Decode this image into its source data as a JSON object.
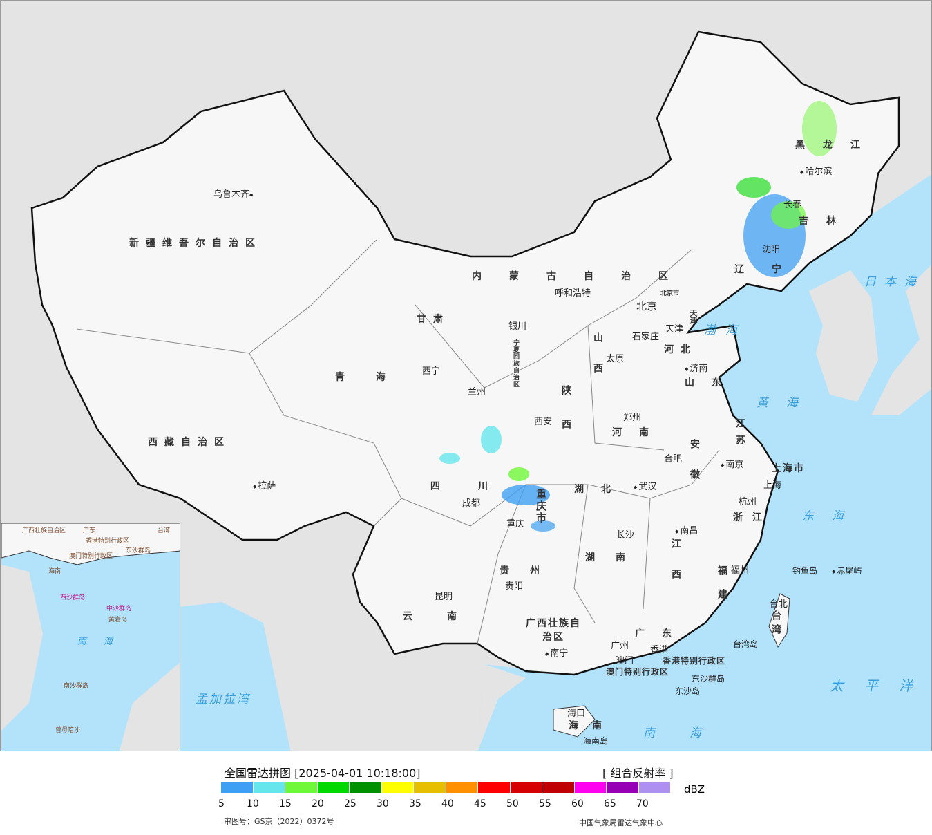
{
  "map": {
    "provinces": [
      "新疆维吾尔自治区",
      "西藏自治区",
      "青海",
      "甘肃",
      "内蒙古自治区",
      "黑龙江",
      "吉林",
      "辽宁",
      "河北",
      "山西",
      "陕西",
      "宁夏回族自治区",
      "四川",
      "重庆市",
      "云南",
      "贵州",
      "广西壮族自治区",
      "广东",
      "湖南",
      "湖北",
      "河南",
      "山东",
      "江苏",
      "安徽",
      "浙江",
      "江西",
      "福建",
      "上海市",
      "台湾",
      "海南",
      "香港特别行政区",
      "澳门特别行政区",
      "北京市",
      "天津"
    ],
    "cities": [
      "乌鲁木齐",
      "拉萨",
      "西宁",
      "兰州",
      "银川",
      "呼和浩特",
      "北京",
      "天津",
      "石家庄",
      "太原",
      "济南",
      "郑州",
      "西安",
      "成都",
      "重庆",
      "贵阳",
      "昆明",
      "南宁",
      "广州",
      "澳门",
      "香港",
      "长沙",
      "武汉",
      "南昌",
      "合肥",
      "南京",
      "上海",
      "杭州",
      "福州",
      "台北",
      "海口",
      "沈阳",
      "长春",
      "哈尔滨"
    ],
    "islands": [
      "钓鱼岛",
      "赤尾屿",
      "台湾岛",
      "海南岛",
      "东沙群岛",
      "东沙岛"
    ],
    "seas": [
      "渤海",
      "黄海",
      "东海",
      "南海",
      "太平洋",
      "日本海",
      "孟加拉湾"
    ],
    "inset": [
      "广西壮族自治区",
      "广东",
      "台湾",
      "香港特别行政区",
      "澳门特别行政区",
      "海南",
      "东沙群岛",
      "西沙群岛",
      "中沙群岛",
      "黄岩岛",
      "南海",
      "南沙群岛",
      "曾母暗沙"
    ]
  },
  "legend": {
    "title": "全国雷达拼图 [2025-04-01 10:18:00]",
    "product": "[ 组合反射率 ]",
    "unit": "dBZ",
    "colors": [
      "#3f9ff2",
      "#66e6ec",
      "#6ff83a",
      "#00d800",
      "#009000",
      "#ffff00",
      "#e6c000",
      "#ff9000",
      "#ff0000",
      "#d60000",
      "#c00000",
      "#ff00f0",
      "#9600b4",
      "#ad90f0"
    ],
    "ticks": [
      "5",
      "10",
      "15",
      "20",
      "25",
      "30",
      "35",
      "40",
      "45",
      "50",
      "55",
      "60",
      "65",
      "70"
    ],
    "approval": "审图号：GS京（2022）0372号",
    "org": "中国气象局雷达气象中心"
  }
}
